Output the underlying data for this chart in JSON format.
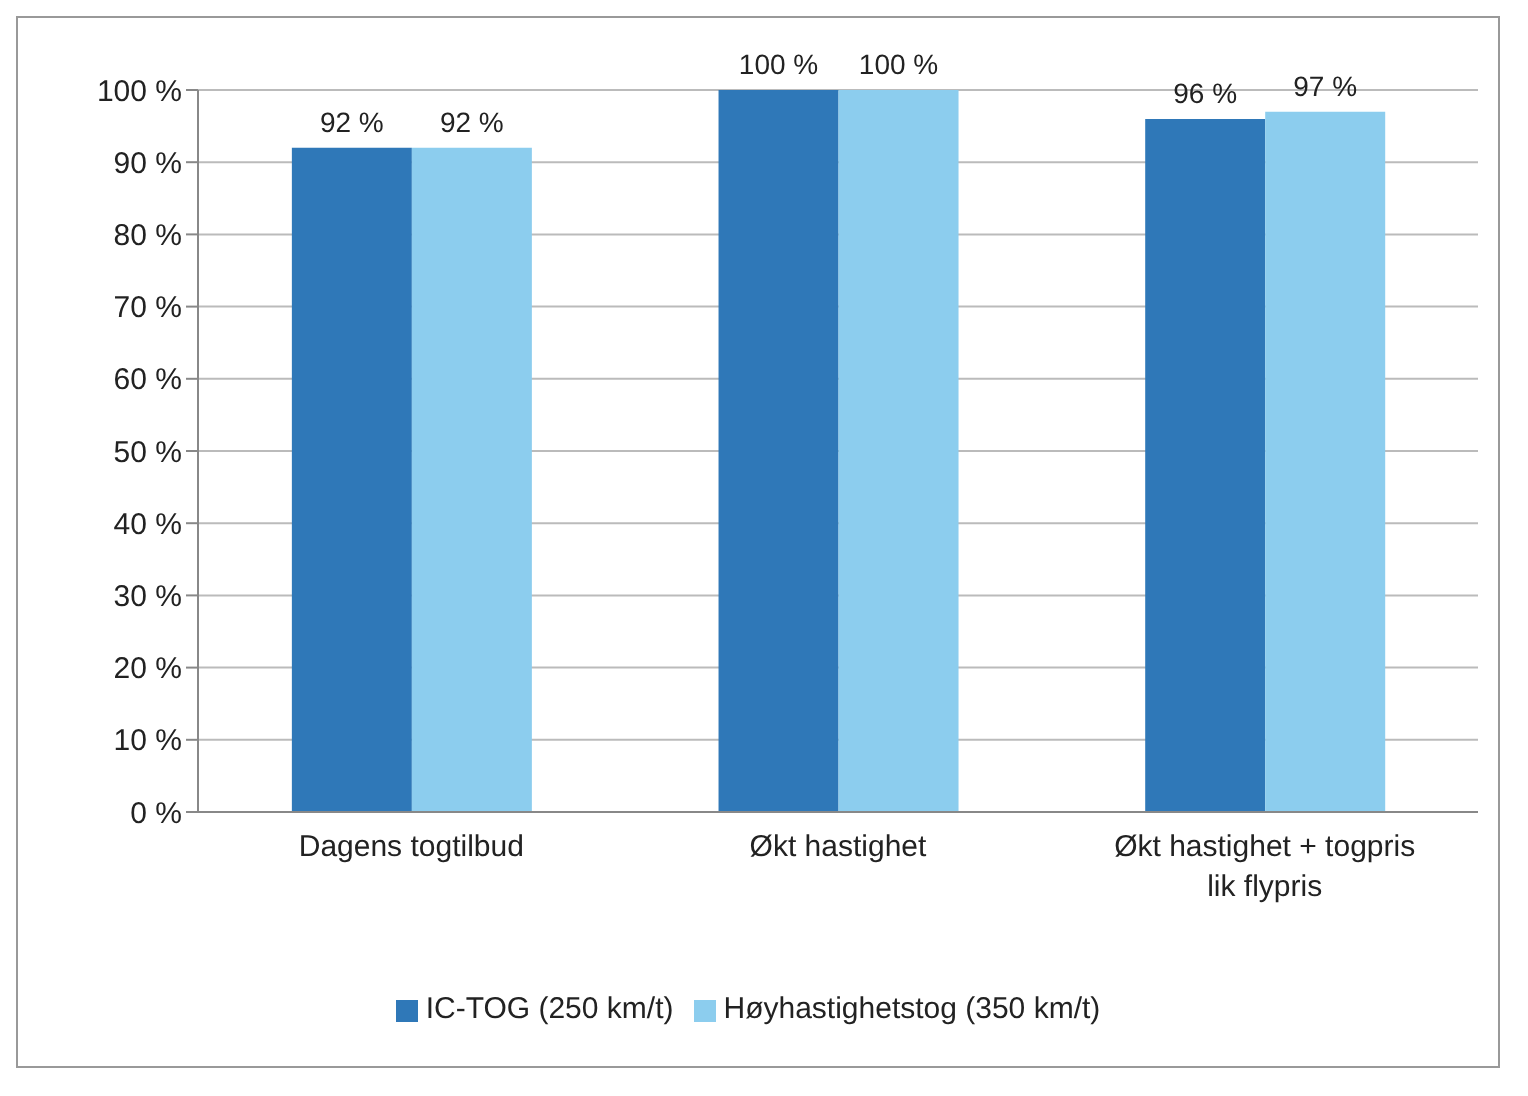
{
  "chart_data": {
    "type": "bar",
    "categories": [
      "Dagens togtilbud",
      "Økt hastighet",
      "Økt hastighet + togpris lik flypris"
    ],
    "series": [
      {
        "name": "IC-TOG (250 km/t)",
        "color": "#2f78b8",
        "values": [
          92,
          100,
          96
        ],
        "value_labels": [
          "92 %",
          "100 %",
          "96 %"
        ]
      },
      {
        "name": "Høyhastighetstog (350 km/t)",
        "color": "#8ccdee",
        "values": [
          92,
          100,
          97
        ],
        "value_labels": [
          "92 %",
          "100 %",
          "97 %"
        ]
      }
    ],
    "ylim": [
      0,
      100
    ],
    "yticks": [
      {
        "value": 0,
        "label": "0 %"
      },
      {
        "value": 10,
        "label": "10 %"
      },
      {
        "value": 20,
        "label": "20 %"
      },
      {
        "value": 30,
        "label": "30 %"
      },
      {
        "value": 40,
        "label": "40 %"
      },
      {
        "value": 50,
        "label": "50 %"
      },
      {
        "value": 60,
        "label": "60 %"
      },
      {
        "value": 70,
        "label": "70 %"
      },
      {
        "value": 80,
        "label": "80 %"
      },
      {
        "value": 90,
        "label": "90 %"
      },
      {
        "value": 100,
        "label": "100 %"
      }
    ],
    "grid": "y",
    "legend": "bottom"
  }
}
